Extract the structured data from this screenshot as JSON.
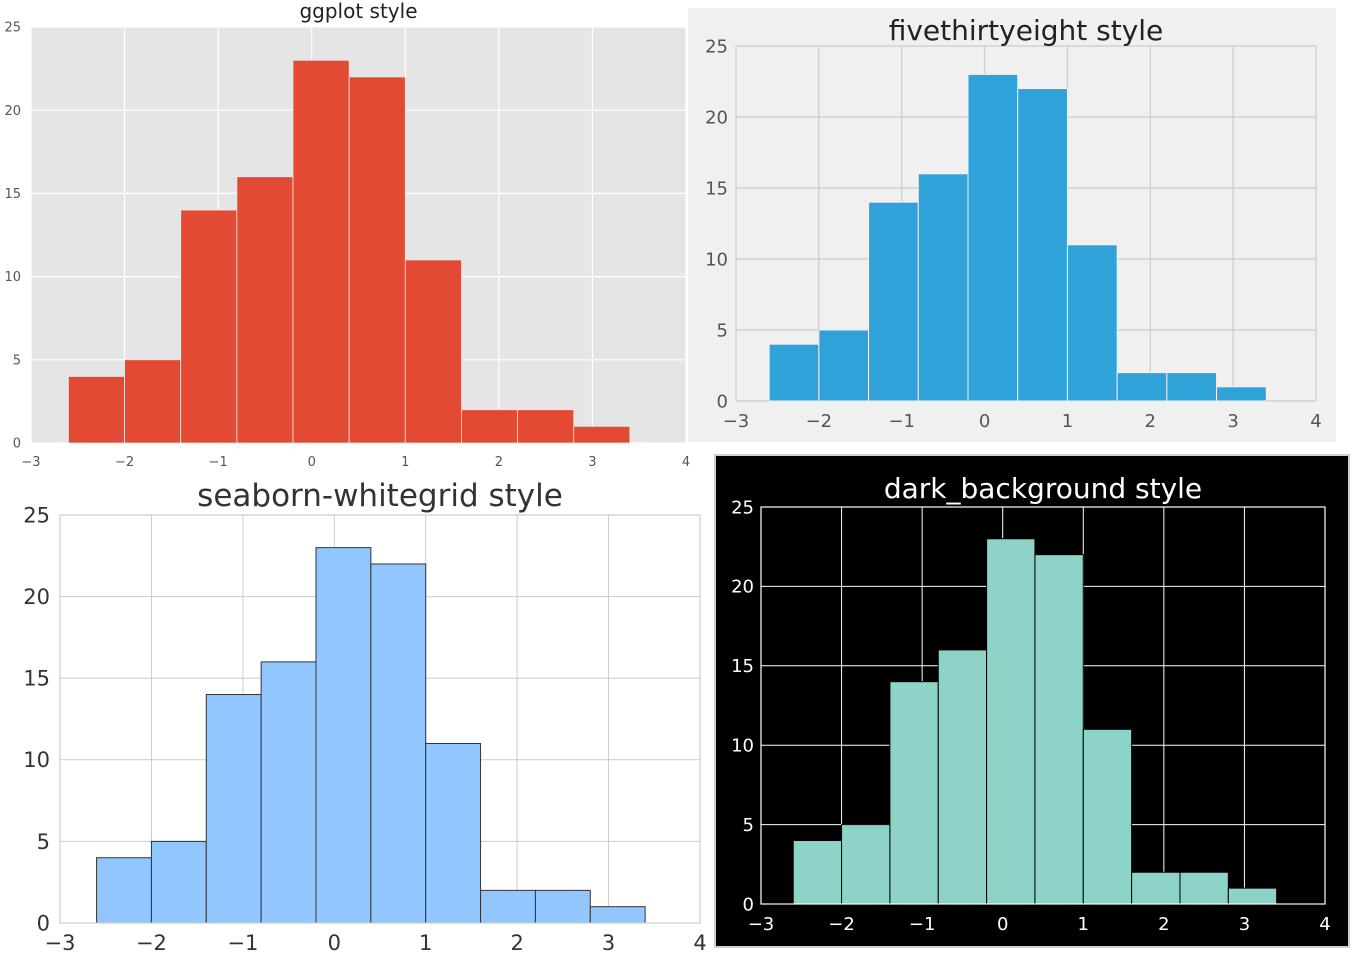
{
  "chart_data": [
    {
      "type": "bar",
      "title": "ggplot style",
      "bin_edges": [
        -2.6,
        -2.0,
        -1.4,
        -0.8,
        -0.2,
        0.4,
        1.0,
        1.6,
        2.2,
        2.8,
        3.4
      ],
      "values": [
        4,
        5,
        14,
        16,
        23,
        22,
        11,
        2,
        2,
        1
      ],
      "xlim": [
        -3,
        4
      ],
      "ylim": [
        0,
        25
      ],
      "x_ticks": [
        "−3",
        "−2",
        "−1",
        "0",
        "1",
        "2",
        "3",
        "4"
      ],
      "y_ticks": [
        "0",
        "5",
        "10",
        "15",
        "20",
        "25"
      ],
      "grid": true,
      "colors": {
        "bar": "#E24A33",
        "edge": "#e6e6e6",
        "background": "#E5E5E5",
        "grid": "#ffffff",
        "text": "#555555",
        "title": "#222222"
      }
    },
    {
      "type": "bar",
      "title": "fivethirtyeight style",
      "bin_edges": [
        -2.6,
        -2.0,
        -1.4,
        -0.8,
        -0.2,
        0.4,
        1.0,
        1.6,
        2.2,
        2.8,
        3.4
      ],
      "values": [
        4,
        5,
        14,
        16,
        23,
        22,
        11,
        2,
        2,
        1
      ],
      "xlim": [
        -3,
        4
      ],
      "ylim": [
        0,
        25
      ],
      "x_ticks": [
        "−3",
        "−2",
        "−1",
        "0",
        "1",
        "2",
        "3",
        "4"
      ],
      "y_ticks": [
        "0",
        "5",
        "10",
        "15",
        "20",
        "25"
      ],
      "grid": true,
      "colors": {
        "bar": "#30A2DA",
        "edge": "#f0f0f0",
        "background": "#F0F0F0",
        "grid": "#cbcbcb",
        "text": "#555555",
        "title": "#222222"
      }
    },
    {
      "type": "bar",
      "title": "seaborn-whitegrid style",
      "bin_edges": [
        -2.6,
        -2.0,
        -1.4,
        -0.8,
        -0.2,
        0.4,
        1.0,
        1.6,
        2.2,
        2.8,
        3.4
      ],
      "values": [
        4,
        5,
        14,
        16,
        23,
        22,
        11,
        2,
        2,
        1
      ],
      "xlim": [
        -3,
        4
      ],
      "ylim": [
        0,
        25
      ],
      "x_ticks": [
        "−3",
        "−2",
        "−1",
        "0",
        "1",
        "2",
        "3",
        "4"
      ],
      "y_ticks": [
        "0",
        "5",
        "10",
        "15",
        "20",
        "25"
      ],
      "grid": true,
      "colors": {
        "bar": "#92C6FF",
        "edge": "#333333",
        "background": "#FFFFFF",
        "grid": "#cccccc",
        "text": "#333333",
        "title": "#333333"
      }
    },
    {
      "type": "bar",
      "title": "dark_background style",
      "bin_edges": [
        -2.6,
        -2.0,
        -1.4,
        -0.8,
        -0.2,
        0.4,
        1.0,
        1.6,
        2.2,
        2.8,
        3.4
      ],
      "values": [
        4,
        5,
        14,
        16,
        23,
        22,
        11,
        2,
        2,
        1
      ],
      "xlim": [
        -3,
        4
      ],
      "ylim": [
        0,
        25
      ],
      "x_ticks": [
        "−3",
        "−2",
        "−1",
        "0",
        "1",
        "2",
        "3",
        "4"
      ],
      "y_ticks": [
        "0",
        "5",
        "10",
        "15",
        "20",
        "25"
      ],
      "grid": true,
      "colors": {
        "bar": "#8DD3C7",
        "edge": "#000000",
        "background": "#000000",
        "grid": "#ffffff",
        "text": "#ffffff",
        "title": "#ffffff"
      }
    }
  ]
}
